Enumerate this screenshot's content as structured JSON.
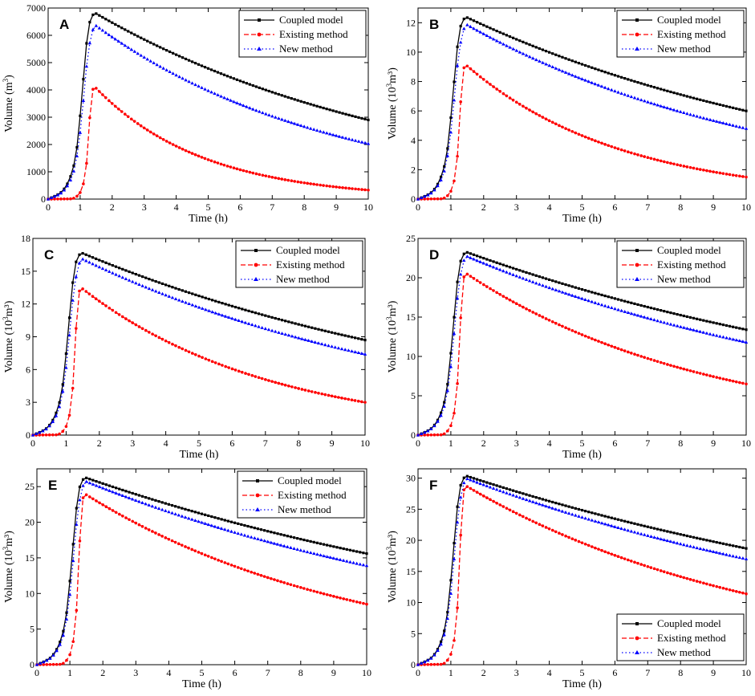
{
  "figure": {
    "series_styles": [
      {
        "name": "Coupled model",
        "color": "#000000",
        "dash": "",
        "marker": "square"
      },
      {
        "name": "Existing method",
        "color": "#ff0000",
        "dash": "6,3",
        "marker": "circle"
      },
      {
        "name": "New method",
        "color": "#0000ff",
        "dash": "1.5,3",
        "marker": "triangle"
      }
    ]
  },
  "chart_data": [
    {
      "type": "line",
      "panel": "A",
      "xlabel": "Time (h)",
      "ylabel_main": "Volume (m",
      "ylabel_sup": "3",
      "ylabel_tail": ")",
      "xlim": [
        0,
        10
      ],
      "ylim": [
        0,
        7000
      ],
      "xticks": [
        0,
        1,
        2,
        3,
        4,
        5,
        6,
        7,
        8,
        9,
        10
      ],
      "yticks": [
        0,
        1000,
        2000,
        3000,
        4000,
        5000,
        6000,
        7000
      ],
      "legend": "top-right",
      "series": [
        {
          "name": "Coupled model",
          "peak": 6830
        },
        {
          "name": "Existing method",
          "peak": 4120
        },
        {
          "name": "New method",
          "peak": 6350
        }
      ],
      "end_values": [
        2900,
        330,
        2030
      ]
    },
    {
      "type": "line",
      "panel": "B",
      "xlabel": "Time (h)",
      "ylabel_main": "Volume (10",
      "ylabel_sup": "3",
      "ylabel_tail": "m³)",
      "xlim": [
        0,
        10
      ],
      "ylim": [
        0,
        13
      ],
      "xticks": [
        0,
        1,
        2,
        3,
        4,
        5,
        6,
        7,
        8,
        9,
        10
      ],
      "yticks": [
        0,
        2,
        4,
        6,
        8,
        10,
        12
      ],
      "legend": "top-right",
      "series": [
        {
          "name": "Coupled model",
          "peak": 12.4
        },
        {
          "name": "Existing method",
          "peak": 9.15
        },
        {
          "name": "New method",
          "peak": 11.85
        }
      ],
      "end_values": [
        6.0,
        1.5,
        4.8
      ]
    },
    {
      "type": "line",
      "panel": "C",
      "xlabel": "Time (h)",
      "ylabel_main": "Volume (10",
      "ylabel_sup": "3",
      "ylabel_tail": "m³)",
      "xlim": [
        0,
        10
      ],
      "ylim": [
        0,
        18
      ],
      "xticks": [
        0,
        1,
        2,
        3,
        4,
        5,
        6,
        7,
        8,
        9,
        10
      ],
      "yticks": [
        0,
        3,
        6,
        9,
        12,
        15,
        18
      ],
      "legend": "top-right",
      "series": [
        {
          "name": "Coupled model",
          "peak": 16.7
        },
        {
          "name": "Existing method",
          "peak": 13.5
        },
        {
          "name": "New method",
          "peak": 16.1
        }
      ],
      "end_values": [
        8.7,
        3.0,
        7.4
      ]
    },
    {
      "type": "line",
      "panel": "D",
      "xlabel": "Time (h)",
      "ylabel_main": "Volume (10",
      "ylabel_sup": "3",
      "ylabel_tail": "m³)",
      "xlim": [
        0,
        10
      ],
      "ylim": [
        0,
        25
      ],
      "xticks": [
        0,
        1,
        2,
        3,
        4,
        5,
        6,
        7,
        8,
        9,
        10
      ],
      "yticks": [
        0,
        5,
        10,
        15,
        20,
        25
      ],
      "legend": "top-right",
      "series": [
        {
          "name": "Coupled model",
          "peak": 23.3
        },
        {
          "name": "Existing method",
          "peak": 20.6
        },
        {
          "name": "New method",
          "peak": 22.7
        }
      ],
      "end_values": [
        13.4,
        6.5,
        11.8
      ]
    },
    {
      "type": "line",
      "panel": "E",
      "xlabel": "Time (h)",
      "ylabel_main": "Volume (10",
      "ylabel_sup": "3",
      "ylabel_tail": "m³)",
      "xlim": [
        0,
        10
      ],
      "ylim": [
        0,
        27.5
      ],
      "xticks": [
        0,
        1,
        2,
        3,
        4,
        5,
        6,
        7,
        8,
        9,
        10
      ],
      "yticks": [
        0,
        5,
        10,
        15,
        20,
        25
      ],
      "legend": "top-right",
      "series": [
        {
          "name": "Coupled model",
          "peak": 26.3
        },
        {
          "name": "Existing method",
          "peak": 24.0
        },
        {
          "name": "New method",
          "peak": 25.7
        }
      ],
      "end_values": [
        15.6,
        8.5,
        13.9
      ]
    },
    {
      "type": "line",
      "panel": "F",
      "xlabel": "Time (h)",
      "ylabel_main": "Volume (10",
      "ylabel_sup": "3",
      "ylabel_tail": "m³)",
      "xlim": [
        0,
        10
      ],
      "ylim": [
        0,
        31.5
      ],
      "xticks": [
        0,
        1,
        2,
        3,
        4,
        5,
        6,
        7,
        8,
        9,
        10
      ],
      "yticks": [
        0,
        5,
        10,
        15,
        20,
        25,
        30
      ],
      "legend": "bottom-right",
      "series": [
        {
          "name": "Coupled model",
          "peak": 30.4
        },
        {
          "name": "Existing method",
          "peak": 28.8
        },
        {
          "name": "New method",
          "peak": 29.9
        }
      ],
      "end_values": [
        18.7,
        11.4,
        17.0
      ]
    }
  ]
}
